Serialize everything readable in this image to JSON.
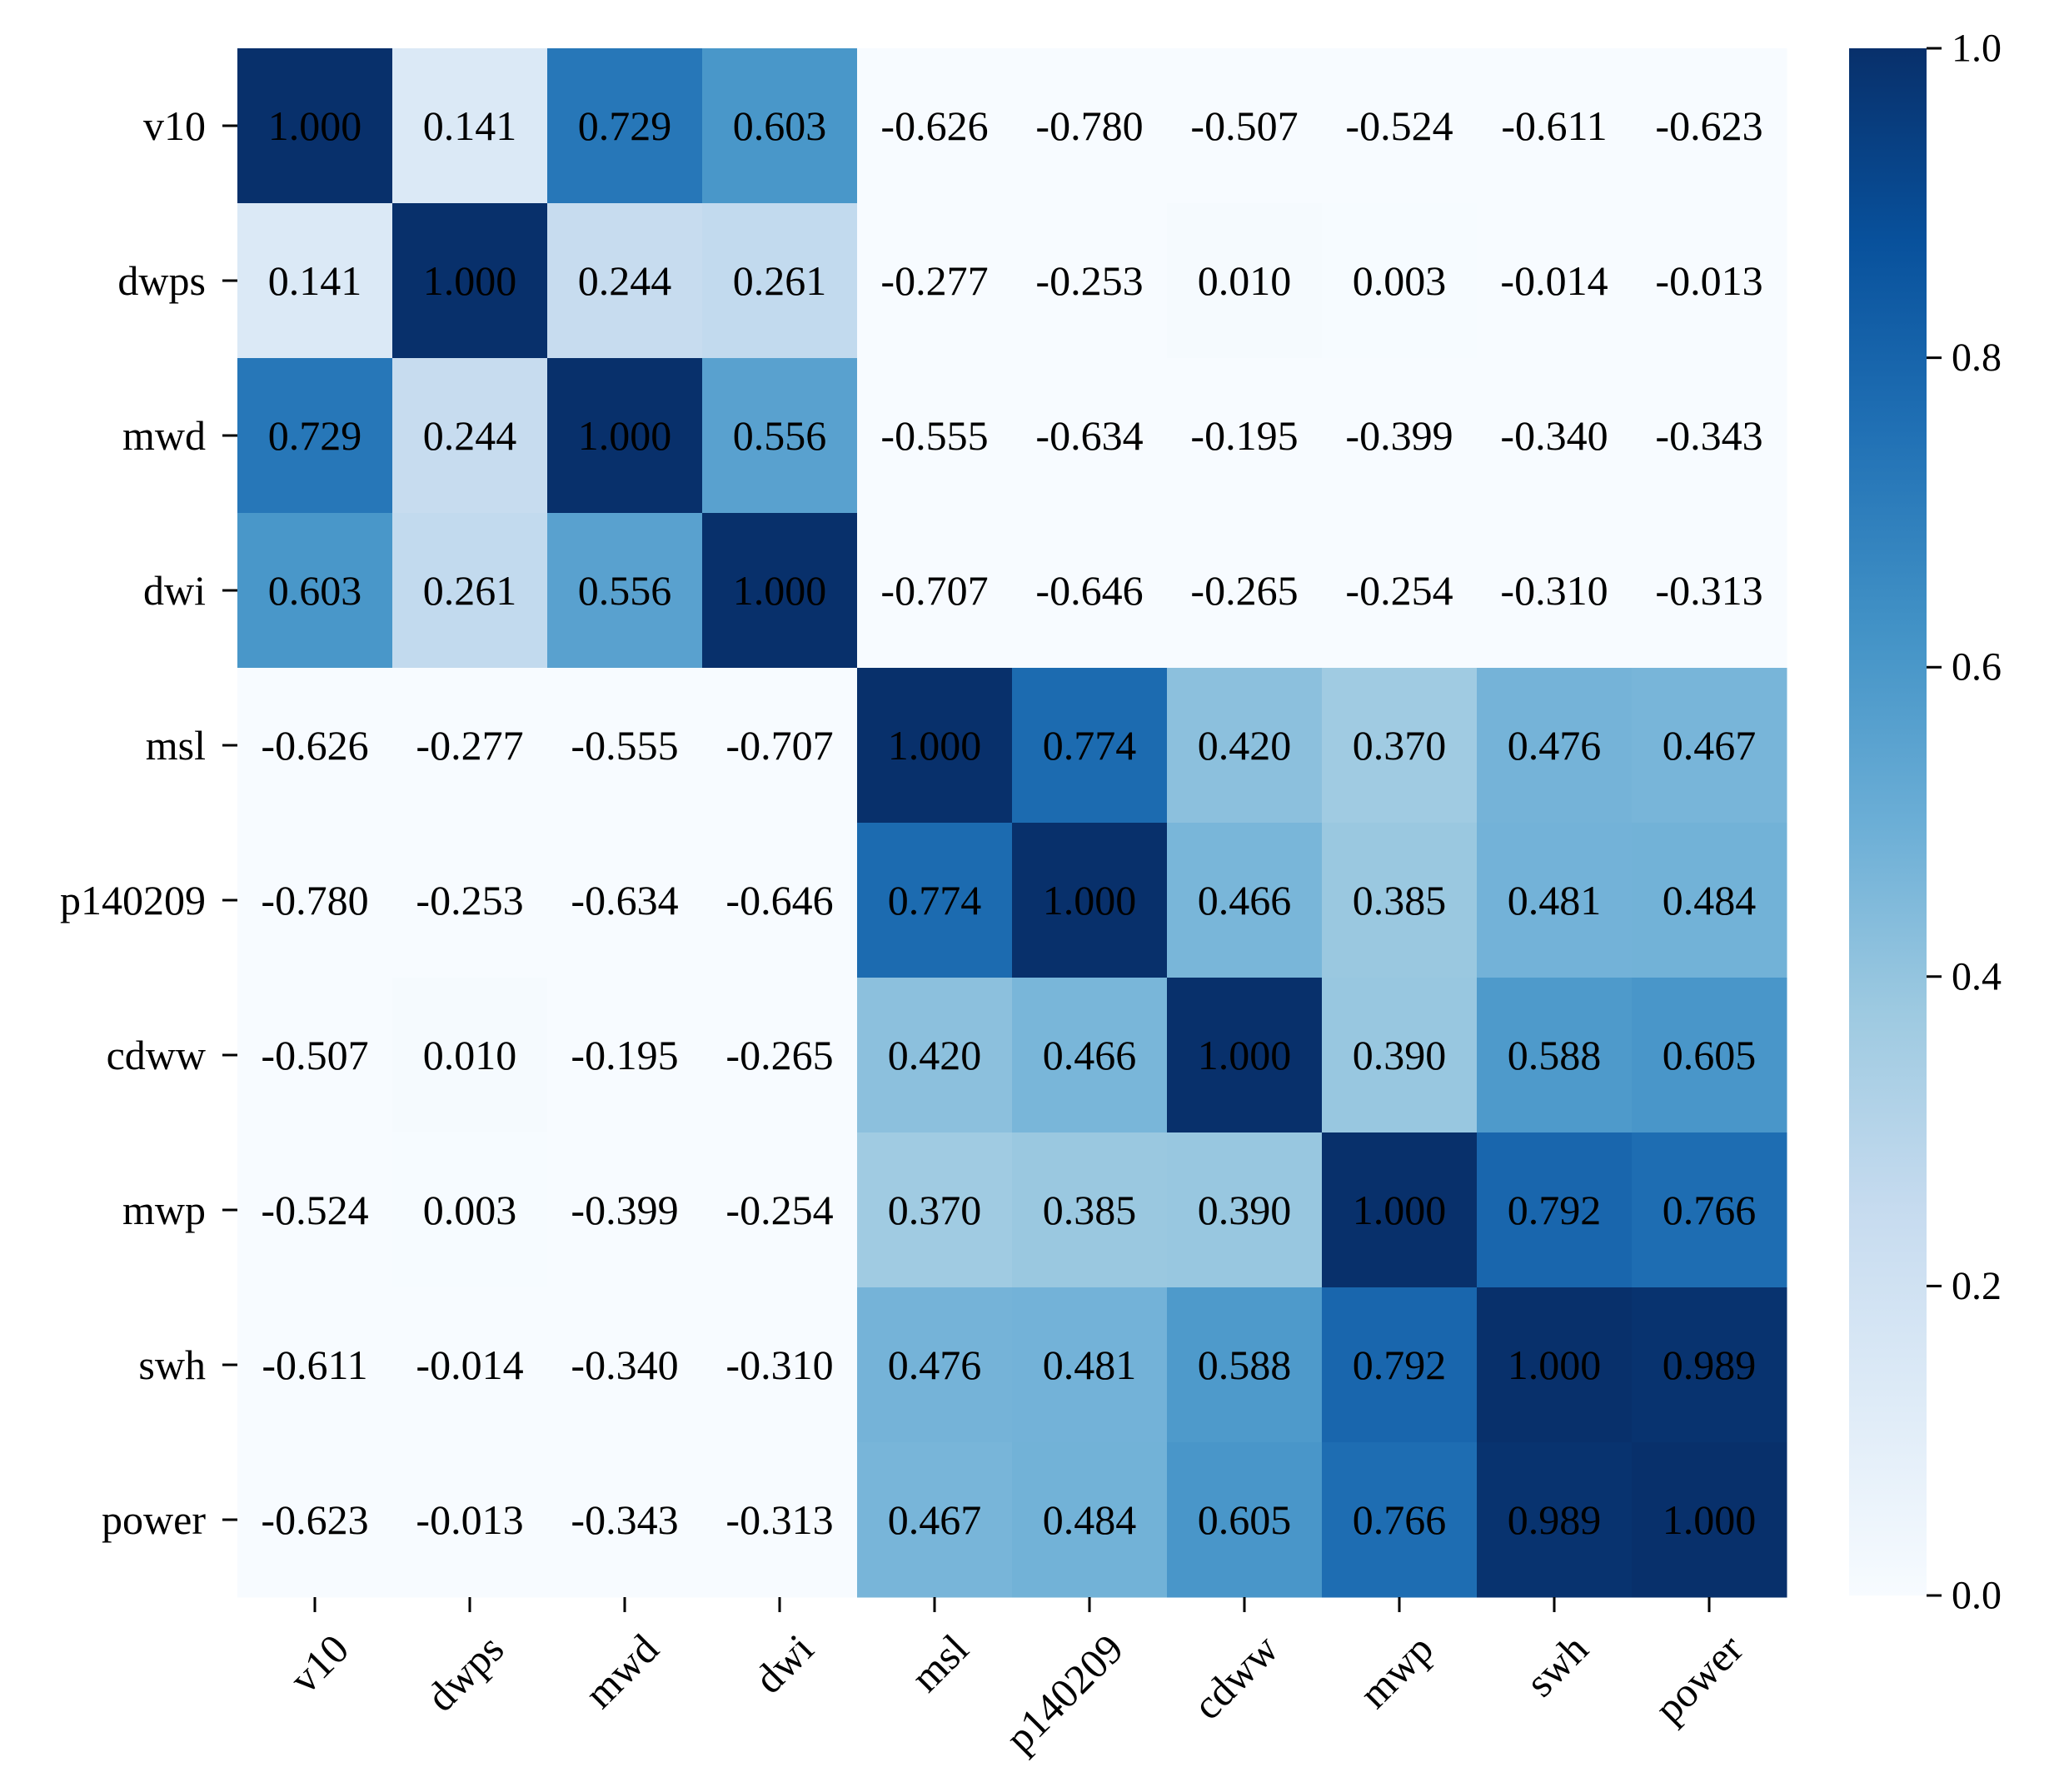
{
  "chart_data": {
    "type": "heatmap",
    "title": "",
    "xlabel": "",
    "ylabel": "",
    "variables": [
      "v10",
      "dwps",
      "mwd",
      "dwi",
      "msl",
      "p140209",
      "cdww",
      "mwp",
      "swh",
      "power"
    ],
    "matrix": [
      [
        1.0,
        0.141,
        0.729,
        0.603,
        -0.626,
        -0.78,
        -0.507,
        -0.524,
        -0.611,
        -0.623
      ],
      [
        0.141,
        1.0,
        0.244,
        0.261,
        -0.277,
        -0.253,
        0.01,
        0.003,
        -0.014,
        -0.013
      ],
      [
        0.729,
        0.244,
        1.0,
        0.556,
        -0.555,
        -0.634,
        -0.195,
        -0.399,
        -0.34,
        -0.343
      ],
      [
        0.603,
        0.261,
        0.556,
        1.0,
        -0.707,
        -0.646,
        -0.265,
        -0.254,
        -0.31,
        -0.313
      ],
      [
        -0.626,
        -0.277,
        -0.555,
        -0.707,
        1.0,
        0.774,
        0.42,
        0.37,
        0.476,
        0.467
      ],
      [
        -0.78,
        -0.253,
        -0.634,
        -0.646,
        0.774,
        1.0,
        0.466,
        0.385,
        0.481,
        0.484
      ],
      [
        -0.507,
        0.01,
        -0.195,
        -0.265,
        0.42,
        0.466,
        1.0,
        0.39,
        0.588,
        0.605
      ],
      [
        -0.524,
        0.003,
        -0.399,
        -0.254,
        0.37,
        0.385,
        0.39,
        1.0,
        0.792,
        0.766
      ],
      [
        -0.611,
        -0.014,
        -0.34,
        -0.31,
        0.476,
        0.481,
        0.588,
        0.792,
        1.0,
        0.989
      ],
      [
        -0.623,
        -0.013,
        -0.343,
        -0.313,
        0.467,
        0.484,
        0.605,
        0.766,
        0.989,
        1.0
      ]
    ],
    "value_format": "3 decimals",
    "colormap": "Blues",
    "color_range": [
      0.0,
      1.0
    ],
    "colorbar": {
      "ticks": [
        0.0,
        0.2,
        0.4,
        0.6,
        0.8,
        1.0
      ],
      "tick_labels": [
        "0.0",
        "0.2",
        "0.4",
        "0.6",
        "0.8",
        "1.0"
      ],
      "placement": "right"
    },
    "x_tick_rotation_deg": 45
  }
}
